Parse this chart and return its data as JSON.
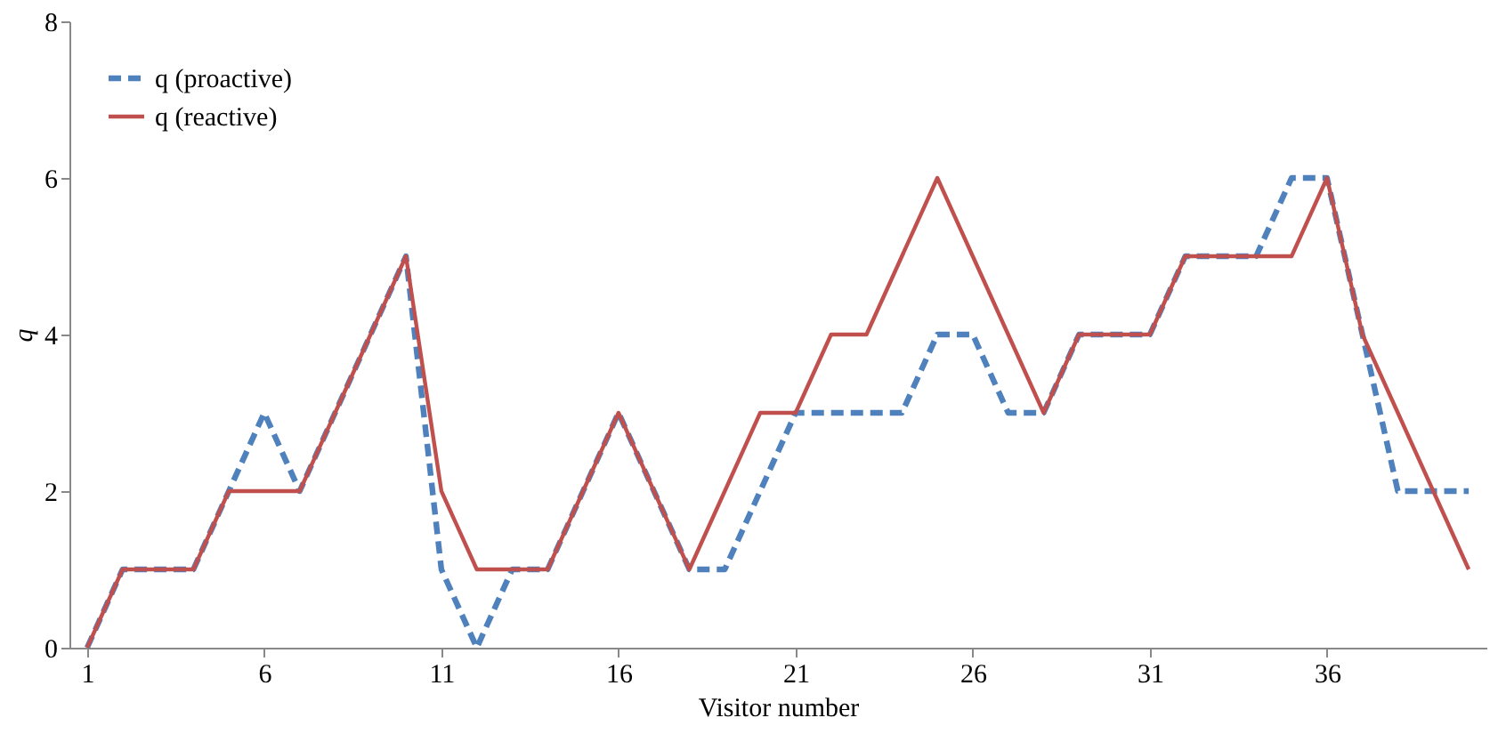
{
  "chart_data": {
    "type": "line",
    "xlabel": "Visitor number",
    "ylabel": "q",
    "categories": [
      "1",
      null,
      null,
      null,
      null,
      "6",
      null,
      null,
      null,
      null,
      "11",
      null,
      null,
      null,
      null,
      "16",
      null,
      null,
      null,
      null,
      "21",
      null,
      null,
      null,
      null,
      "26",
      null,
      null,
      null,
      null,
      "31",
      null,
      null,
      null,
      null,
      "36",
      null,
      null,
      null,
      null
    ],
    "series": [
      {
        "name": "q (proactive)",
        "color": "#4f81bd",
        "line_style": "dashed",
        "values": [
          0,
          1,
          1,
          1,
          2,
          3,
          2,
          3,
          4,
          5,
          1,
          0,
          1,
          1,
          2,
          3,
          2,
          1,
          1,
          2,
          3,
          3,
          3,
          3,
          4,
          4,
          3,
          3,
          4,
          4,
          4,
          5,
          5,
          5,
          6,
          6,
          4,
          2,
          2,
          2
        ]
      },
      {
        "name": "q (reactive)",
        "color": "#c0504d",
        "line_style": "solid",
        "values": [
          0,
          1,
          1,
          1,
          2,
          2,
          2,
          3,
          4,
          5,
          2,
          1,
          1,
          1,
          2,
          3,
          2,
          1,
          2,
          3,
          3,
          4,
          4,
          5,
          6,
          5,
          4,
          3,
          4,
          4,
          4,
          5,
          5,
          5,
          5,
          6,
          4,
          3,
          2,
          1
        ]
      }
    ],
    "ylim": [
      0,
      8
    ],
    "yticks": [
      0,
      2,
      4,
      6,
      8
    ],
    "grid": false,
    "legend": "top left",
    "marker": "none"
  }
}
